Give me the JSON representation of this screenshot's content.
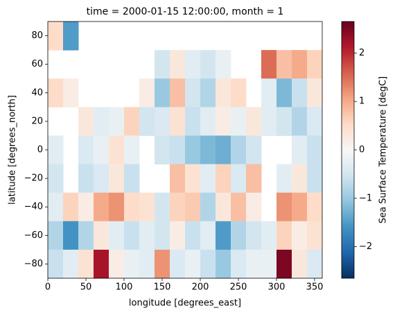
{
  "chart_data": {
    "type": "heatmap",
    "title": "time = 2000-01-15 12:00:00, month = 1",
    "x_label": "longitude [degrees_east]",
    "y_label": "latitude [degrees_north]",
    "colorbar_label": "Sea Surface Temperature [degC]",
    "x": [
      10,
      30,
      50,
      70,
      90,
      110,
      130,
      150,
      170,
      190,
      210,
      230,
      250,
      270,
      290,
      310,
      330,
      350
    ],
    "y": [
      80,
      60,
      40,
      20,
      0,
      -20,
      -40,
      -60,
      -80
    ],
    "z": [
      [
        0.5,
        -1.5,
        null,
        null,
        null,
        null,
        null,
        null,
        null,
        null,
        null,
        null,
        null,
        null,
        null,
        null,
        null,
        null
      ],
      [
        null,
        null,
        null,
        null,
        null,
        null,
        null,
        -0.5,
        0.3,
        -0.3,
        -0.5,
        -0.2,
        null,
        null,
        1.5,
        0.8,
        1.0,
        0.6
      ],
      [
        0.5,
        0.2,
        null,
        null,
        null,
        null,
        0.2,
        -1.0,
        0.8,
        -0.5,
        -0.8,
        0.3,
        0.5,
        null,
        -0.3,
        -1.2,
        -0.6,
        0.3
      ],
      [
        null,
        null,
        0.3,
        -0.3,
        -0.2,
        0.6,
        -0.5,
        -0.4,
        0.4,
        -0.6,
        -0.3,
        0.2,
        -0.2,
        0.3,
        -0.3,
        -0.5,
        -0.8,
        -0.4
      ],
      [
        -0.3,
        null,
        -0.4,
        -0.2,
        0.4,
        -0.2,
        null,
        -0.5,
        -0.6,
        -1.0,
        -1.2,
        -1.3,
        -0.8,
        -0.5,
        null,
        null,
        -0.3,
        -0.6
      ],
      [
        -0.5,
        null,
        -0.6,
        -0.4,
        0.3,
        -0.6,
        null,
        null,
        0.8,
        0.4,
        -0.3,
        0.6,
        -0.4,
        0.8,
        null,
        -0.3,
        0.3,
        -0.6
      ],
      [
        -0.3,
        0.6,
        0.2,
        1.0,
        1.2,
        0.5,
        0.4,
        -0.5,
        0.6,
        0.7,
        -0.8,
        0.3,
        0.8,
        0.2,
        null,
        1.2,
        1.0,
        0.5
      ],
      [
        -0.8,
        -1.6,
        -0.8,
        0.3,
        -0.3,
        -0.6,
        -0.3,
        -0.5,
        0.2,
        -0.6,
        -0.3,
        -1.5,
        -0.8,
        -0.5,
        -0.3,
        0.6,
        0.2,
        0.4
      ],
      [
        -0.6,
        -0.3,
        0.4,
        2.2,
        0.2,
        -0.2,
        -0.3,
        1.2,
        -0.4,
        -0.2,
        -0.6,
        -1.0,
        -0.4,
        -0.2,
        -0.2,
        2.5,
        0.3,
        -0.4
      ]
    ],
    "xlim": [
      0,
      360
    ],
    "ylim": [
      -90,
      90
    ],
    "xticks": [
      0,
      50,
      100,
      150,
      200,
      250,
      300,
      350
    ],
    "yticks": [
      {
        "value": -80,
        "label": "−80"
      },
      {
        "value": -60,
        "label": "−60"
      },
      {
        "value": -40,
        "label": "−40"
      },
      {
        "value": -20,
        "label": "−20"
      },
      0,
      20,
      40,
      60,
      80
    ],
    "clim": [
      -2.65,
      2.65
    ],
    "cticks": [
      {
        "value": -2,
        "label": "−2"
      },
      {
        "value": -1,
        "label": "−1"
      },
      0,
      1,
      2
    ],
    "colormap": [
      "#053061",
      "#2166ac",
      "#4393c3",
      "#92c5de",
      "#d1e5f0",
      "#f7f7f7",
      "#fddbc7",
      "#f4a582",
      "#d6604d",
      "#b2182b",
      "#67001f"
    ]
  }
}
